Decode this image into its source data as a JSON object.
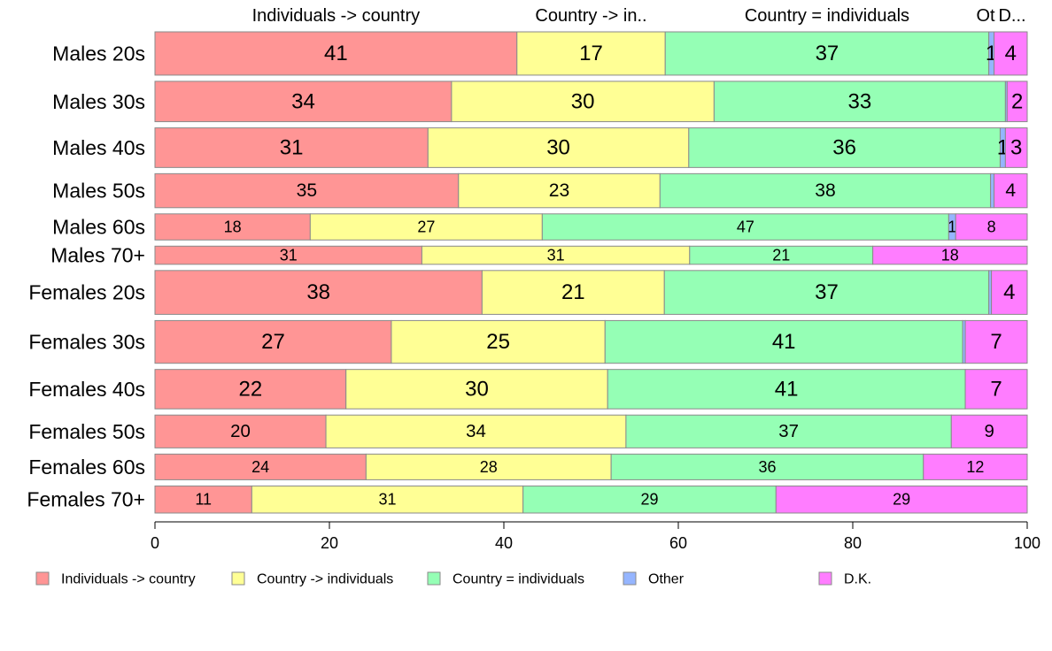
{
  "chart_data": {
    "type": "bar",
    "orientation": "horizontal",
    "stacked": true,
    "title": "",
    "xlabel": "",
    "ylabel": "",
    "xlim": [
      0,
      100
    ],
    "x_ticks": [
      0,
      20,
      40,
      60,
      80,
      100
    ],
    "grid": false,
    "legend_position": "bottom",
    "top_labels": [
      "Individuals -> country",
      "Country -> in..",
      "Country = individuals",
      "Ot",
      "D..."
    ],
    "categories": [
      "Males 20s",
      "Males 30s",
      "Males 40s",
      "Males 50s",
      "Males 60s",
      "Males 70+",
      "Females 20s",
      "Females 30s",
      "Females 40s",
      "Females 50s",
      "Females 60s",
      "Females 70+"
    ],
    "category_weights": [
      224,
      209,
      205,
      176,
      135,
      94,
      227,
      221,
      204,
      170,
      133,
      140
    ],
    "series": [
      {
        "name": "Individuals -> country",
        "color": "#FF9595",
        "values": [
          41.5,
          34.0,
          31.3,
          34.8,
          17.8,
          30.6,
          37.5,
          27.1,
          21.9,
          19.6,
          24.2,
          11.1
        ]
      },
      {
        "name": "Country -> individuals",
        "color": "#FFFF95",
        "values": [
          17.0,
          30.1,
          29.9,
          23.1,
          26.6,
          30.7,
          20.9,
          24.5,
          30.0,
          34.4,
          28.1,
          31.1
        ]
      },
      {
        "name": "Country = individuals",
        "color": "#95FFB5",
        "values": [
          37.1,
          33.4,
          35.7,
          37.9,
          46.6,
          21.0,
          37.2,
          41.0,
          41.0,
          37.3,
          35.8,
          29.0
        ]
      },
      {
        "name": "Other",
        "color": "#95B5FF",
        "values": [
          0.6,
          0.2,
          0.6,
          0.4,
          0.8,
          0.0,
          0.3,
          0.3,
          0.0,
          0.0,
          0.0,
          0.0
        ]
      },
      {
        "name": "D.K.",
        "color": "#FF7DFF",
        "values": [
          3.8,
          2.3,
          2.5,
          3.8,
          8.2,
          17.7,
          4.1,
          7.1,
          7.1,
          8.7,
          11.9,
          28.8
        ]
      }
    ],
    "data_labels": [
      [
        "41",
        "17",
        "37",
        "1",
        "4"
      ],
      [
        "34",
        "30",
        "33",
        "",
        "2"
      ],
      [
        "31",
        "30",
        "36",
        "1",
        "3"
      ],
      [
        "35",
        "23",
        "38",
        "",
        "4"
      ],
      [
        "18",
        "27",
        "47",
        "1",
        "8"
      ],
      [
        "31",
        "31",
        "21",
        "",
        "18"
      ],
      [
        "38",
        "21",
        "37",
        "",
        "4"
      ],
      [
        "27",
        "25",
        "41",
        "",
        "7"
      ],
      [
        "22",
        "30",
        "41",
        "",
        "7"
      ],
      [
        "20",
        "34",
        "37",
        "",
        "9"
      ],
      [
        "24",
        "28",
        "36",
        "",
        "12"
      ],
      [
        "11",
        "31",
        "29",
        "",
        "29"
      ]
    ]
  }
}
